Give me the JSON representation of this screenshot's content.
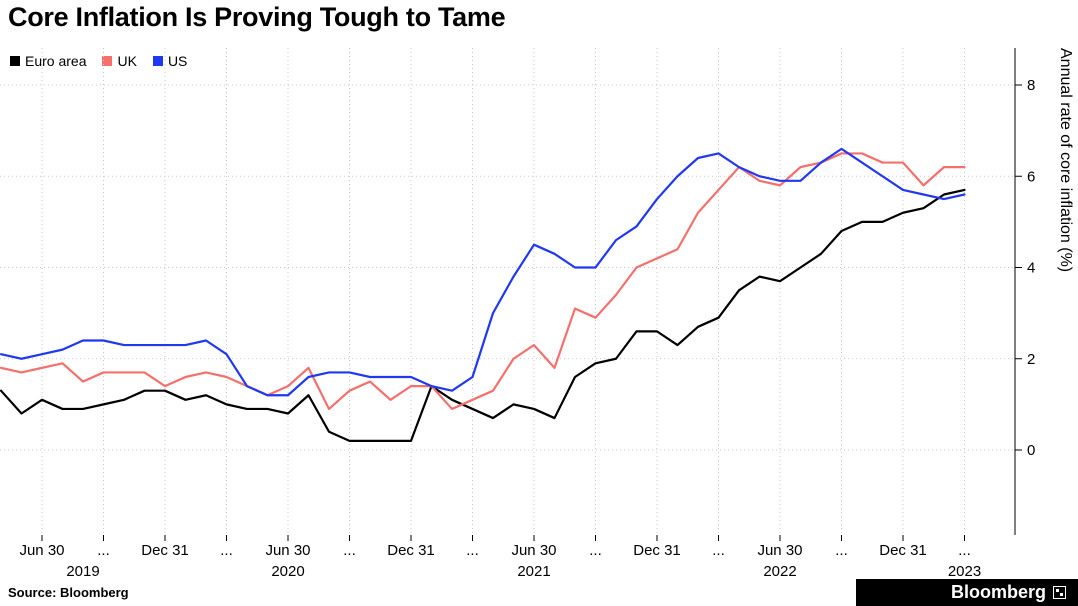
{
  "title": "Core Inflation Is Proving Tough to Tame",
  "source": "Source: Bloomberg",
  "brand": {
    "name": "Bloomberg"
  },
  "legend": [
    {
      "label": "Euro area",
      "color": "#000000"
    },
    {
      "label": "UK",
      "color": "#f4706d"
    },
    {
      "label": "US",
      "color": "#2038f0"
    }
  ],
  "chart_data": {
    "type": "line",
    "title": "Core Inflation Is Proving Tough to Tame",
    "ylabel": "Annual rate of core inflation (%)",
    "xlabel": "",
    "y_ticks": [
      0,
      2,
      4,
      6,
      8
    ],
    "ylim": [
      -1.9,
      8.8
    ],
    "grid": "dotted",
    "legend_position": "top-left",
    "x_tick_labels": [
      "Jun 30",
      "...",
      "Dec 31",
      "...",
      "Jun 30",
      "...",
      "Dec 31",
      "...",
      "Jun 30",
      "...",
      "Dec 31",
      "...",
      "Jun 30",
      "...",
      "Dec 31",
      "..."
    ],
    "year_labels": [
      "2019",
      "2020",
      "2021",
      "2022",
      "2023"
    ],
    "x": [
      "2019-04",
      "2019-05",
      "2019-06",
      "2019-07",
      "2019-08",
      "2019-09",
      "2019-10",
      "2019-11",
      "2019-12",
      "2020-01",
      "2020-02",
      "2020-03",
      "2020-04",
      "2020-05",
      "2020-06",
      "2020-07",
      "2020-08",
      "2020-09",
      "2020-10",
      "2020-11",
      "2020-12",
      "2021-01",
      "2021-02",
      "2021-03",
      "2021-04",
      "2021-05",
      "2021-06",
      "2021-07",
      "2021-08",
      "2021-09",
      "2021-10",
      "2021-11",
      "2021-12",
      "2022-01",
      "2022-02",
      "2022-03",
      "2022-04",
      "2022-05",
      "2022-06",
      "2022-07",
      "2022-08",
      "2022-09",
      "2022-10",
      "2022-11",
      "2022-12",
      "2023-01",
      "2023-02",
      "2023-03"
    ],
    "series": [
      {
        "name": "Euro area",
        "color": "#000000",
        "values": [
          1.3,
          0.8,
          1.1,
          0.9,
          0.9,
          1.0,
          1.1,
          1.3,
          1.3,
          1.1,
          1.2,
          1.0,
          0.9,
          0.9,
          0.8,
          1.2,
          0.4,
          0.2,
          0.2,
          0.2,
          0.2,
          1.4,
          1.1,
          0.9,
          0.7,
          1.0,
          0.9,
          0.7,
          1.6,
          1.9,
          2.0,
          2.6,
          2.6,
          2.3,
          2.7,
          2.9,
          3.5,
          3.8,
          3.7,
          4.0,
          4.3,
          4.8,
          5.0,
          5.0,
          5.2,
          5.3,
          5.6,
          5.7
        ]
      },
      {
        "name": "UK",
        "color": "#f4706d",
        "values": [
          1.8,
          1.7,
          1.8,
          1.9,
          1.5,
          1.7,
          1.7,
          1.7,
          1.4,
          1.6,
          1.7,
          1.6,
          1.4,
          1.2,
          1.4,
          1.8,
          0.9,
          1.3,
          1.5,
          1.1,
          1.4,
          1.4,
          0.9,
          1.1,
          1.3,
          2.0,
          2.3,
          1.8,
          3.1,
          2.9,
          3.4,
          4.0,
          4.2,
          4.4,
          5.2,
          5.7,
          6.2,
          5.9,
          5.8,
          6.2,
          6.3,
          6.5,
          6.5,
          6.3,
          6.3,
          5.8,
          6.2,
          6.2
        ]
      },
      {
        "name": "US",
        "color": "#2038f0",
        "values": [
          2.1,
          2.0,
          2.1,
          2.2,
          2.4,
          2.4,
          2.3,
          2.3,
          2.3,
          2.3,
          2.4,
          2.1,
          1.4,
          1.2,
          1.2,
          1.6,
          1.7,
          1.7,
          1.6,
          1.6,
          1.6,
          1.4,
          1.3,
          1.6,
          3.0,
          3.8,
          4.5,
          4.3,
          4.0,
          4.0,
          4.6,
          4.9,
          5.5,
          6.0,
          6.4,
          6.5,
          6.2,
          6.0,
          5.9,
          5.9,
          6.3,
          6.6,
          6.3,
          6.0,
          5.7,
          5.6,
          5.5,
          5.6
        ]
      }
    ]
  }
}
